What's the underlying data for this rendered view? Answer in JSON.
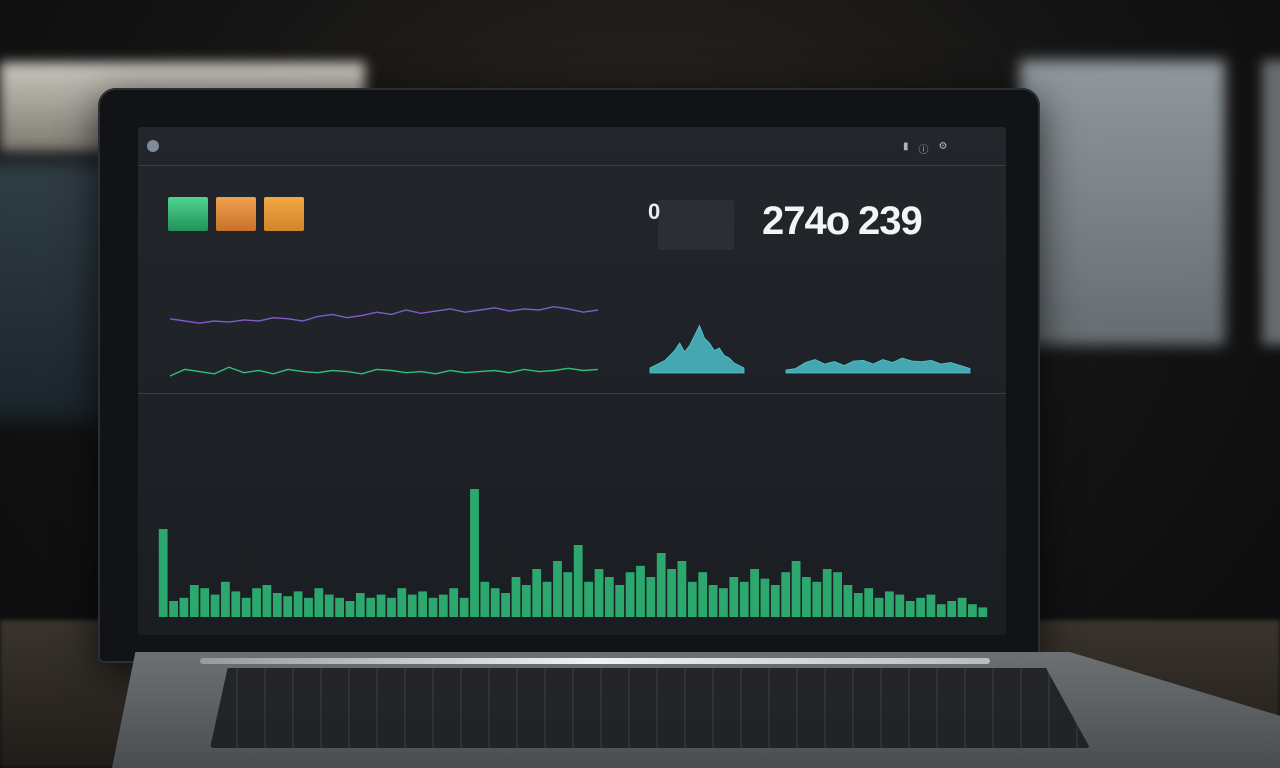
{
  "scene": {
    "colors": {
      "screen_bg": "#1f2327",
      "accent_green": "#2fbf7a",
      "accent_teal": "#4fc9d4",
      "accent_purple": "#7f5cc8",
      "tile_orange": "#e6913f"
    }
  },
  "app": {
    "title": "",
    "top_nav": [
      "",
      "",
      "",
      ""
    ],
    "top_icons": [
      "bookmark-icon",
      "info-icon",
      "gear-icon"
    ]
  },
  "tiles": [
    {
      "color": "#3fc384",
      "caption": ""
    },
    {
      "color": "#e6913f",
      "caption": ""
    },
    {
      "color": "#ee9a3b",
      "caption": ""
    }
  ],
  "header": {
    "headline": "",
    "subline": ""
  },
  "metrics": {
    "gauge_value": "0",
    "kpi_label": "",
    "kpi_primary": "274o",
    "kpi_secondary": "239",
    "kpi_secondary_unit": ""
  },
  "panels": {
    "top_left_label": "",
    "mini_chart_left_label": "",
    "mini_chart_right_label": "",
    "bottom_section_label": "",
    "bottom_chart_title": "",
    "bottom_center_label": "",
    "bottom_right_label": ""
  },
  "chart_data": [
    {
      "type": "line",
      "series": [
        {
          "values": [
            0.62,
            0.6,
            0.58,
            0.6,
            0.59,
            0.61,
            0.6,
            0.63,
            0.62,
            0.6,
            0.64,
            0.66,
            0.63,
            0.65,
            0.68,
            0.66,
            0.7,
            0.67,
            0.69,
            0.71,
            0.68,
            0.7,
            0.72,
            0.69,
            0.71,
            0.7,
            0.73,
            0.71,
            0.68,
            0.7
          ],
          "color": "#7f5cc8"
        },
        {
          "values": [
            0.1,
            0.16,
            0.14,
            0.12,
            0.18,
            0.13,
            0.15,
            0.12,
            0.16,
            0.14,
            0.13,
            0.15,
            0.14,
            0.12,
            0.16,
            0.15,
            0.13,
            0.14,
            0.12,
            0.15,
            0.13,
            0.14,
            0.15,
            0.13,
            0.16,
            0.14,
            0.15,
            0.17,
            0.15,
            0.16
          ],
          "color": "#2fbf7a"
        }
      ]
    },
    {
      "type": "area",
      "values": [
        0.1,
        0.15,
        0.2,
        0.25,
        0.35,
        0.45,
        0.6,
        0.42,
        0.55,
        0.75,
        0.95,
        0.7,
        0.6,
        0.45,
        0.5,
        0.35,
        0.3,
        0.2,
        0.15,
        0.1
      ],
      "color": "#4fc9d4"
    },
    {
      "type": "area",
      "values": [
        0.1,
        0.15,
        0.35,
        0.45,
        0.3,
        0.38,
        0.25,
        0.4,
        0.42,
        0.3,
        0.45,
        0.35,
        0.5,
        0.4,
        0.38,
        0.42,
        0.3,
        0.35,
        0.25,
        0.15
      ],
      "color": "#4fc9d4"
    },
    {
      "type": "bar",
      "values": [
        0.55,
        0.1,
        0.12,
        0.2,
        0.18,
        0.14,
        0.22,
        0.16,
        0.12,
        0.18,
        0.2,
        0.15,
        0.13,
        0.16,
        0.12,
        0.18,
        0.14,
        0.12,
        0.1,
        0.15,
        0.12,
        0.14,
        0.12,
        0.18,
        0.14,
        0.16,
        0.12,
        0.14,
        0.18,
        0.12,
        0.8,
        0.22,
        0.18,
        0.15,
        0.25,
        0.2,
        0.3,
        0.22,
        0.35,
        0.28,
        0.45,
        0.22,
        0.3,
        0.25,
        0.2,
        0.28,
        0.32,
        0.25,
        0.4,
        0.3,
        0.35,
        0.22,
        0.28,
        0.2,
        0.18,
        0.25,
        0.22,
        0.3,
        0.24,
        0.2,
        0.28,
        0.35,
        0.25,
        0.22,
        0.3,
        0.28,
        0.2,
        0.15,
        0.18,
        0.12,
        0.16,
        0.14,
        0.1,
        0.12,
        0.14,
        0.08,
        0.1,
        0.12,
        0.08,
        0.06
      ],
      "color": "#2fbf7a"
    }
  ]
}
